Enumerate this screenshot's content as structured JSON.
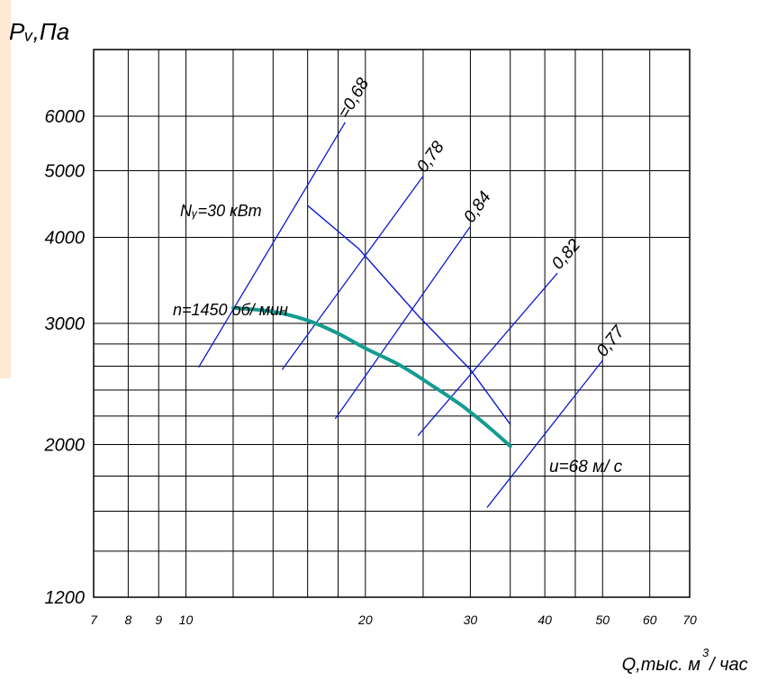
{
  "chart_data": {
    "type": "line",
    "title": "",
    "ylabel": "Pᵥ,Па",
    "xlabel": "Q,тыс. м",
    "xlabel_exp": "3",
    "xlabel_tail": "/ час",
    "x_scale": "log",
    "y_scale": "log",
    "xlim": [
      7,
      70
    ],
    "ylim": [
      1200,
      7500
    ],
    "x_ticks": [
      {
        "v": 7,
        "label": "7"
      },
      {
        "v": 8,
        "label": "8"
      },
      {
        "v": 9,
        "label": "9"
      },
      {
        "v": 10,
        "label": "10"
      },
      {
        "v": 20,
        "label": "20"
      },
      {
        "v": 30,
        "label": "30"
      },
      {
        "v": 40,
        "label": "40"
      },
      {
        "v": 50,
        "label": "50"
      },
      {
        "v": 60,
        "label": "60"
      },
      {
        "v": 70,
        "label": "70"
      }
    ],
    "y_ticks": [
      {
        "v": 1200,
        "label": "1200"
      },
      {
        "v": 2000,
        "label": "2000"
      },
      {
        "v": 3000,
        "label": "3000"
      },
      {
        "v": 4000,
        "label": "4000"
      },
      {
        "v": 5000,
        "label": "5000"
      },
      {
        "v": 6000,
        "label": "6000"
      }
    ],
    "x_grid": [
      7,
      8,
      9,
      10,
      12,
      14,
      16,
      18,
      20,
      25,
      30,
      35,
      40,
      45,
      50,
      60,
      70
    ],
    "y_grid": [
      1200,
      1400,
      1600,
      1800,
      2000,
      2200,
      2400,
      2600,
      2800,
      3000,
      4000,
      5000,
      6000,
      7500
    ],
    "grid": true,
    "series": [
      {
        "name": "n=1450 об/ мин",
        "color": "#139b91",
        "points": [
          [
            12.0,
            3160
          ],
          [
            14.0,
            3120
          ],
          [
            16.0,
            3030
          ],
          [
            18.0,
            2900
          ],
          [
            20.0,
            2760
          ],
          [
            23.0,
            2600
          ],
          [
            26.0,
            2430
          ],
          [
            29.0,
            2280
          ],
          [
            32.0,
            2130
          ],
          [
            35.0,
            1990
          ]
        ]
      }
    ],
    "power_line": {
      "label": "Nᵧ=30 кВт",
      "color": "#0a1bd0",
      "points": [
        [
          16.0,
          4450
        ],
        [
          19.5,
          3850
        ],
        [
          24.5,
          3080
        ],
        [
          30.0,
          2570
        ],
        [
          35.0,
          2140
        ]
      ]
    },
    "velocity_label": "u=68 м/ c",
    "efficiency_lines": [
      {
        "label": "=0,68",
        "from": [
          10.5,
          2590
        ],
        "to": [
          18.5,
          5880
        ]
      },
      {
        "label": "0,78",
        "from": [
          14.5,
          2570
        ],
        "to": [
          25.0,
          4910
        ]
      },
      {
        "label": "0,84",
        "from": [
          17.8,
          2180
        ],
        "to": [
          30.0,
          4150
        ]
      },
      {
        "label": "0,82",
        "from": [
          24.5,
          2060
        ],
        "to": [
          42.0,
          3550
        ]
      },
      {
        "label": "0,77",
        "from": [
          32.0,
          1620
        ],
        "to": [
          50.0,
          2650
        ]
      }
    ],
    "efficiency_color": "#0a1bd0"
  }
}
